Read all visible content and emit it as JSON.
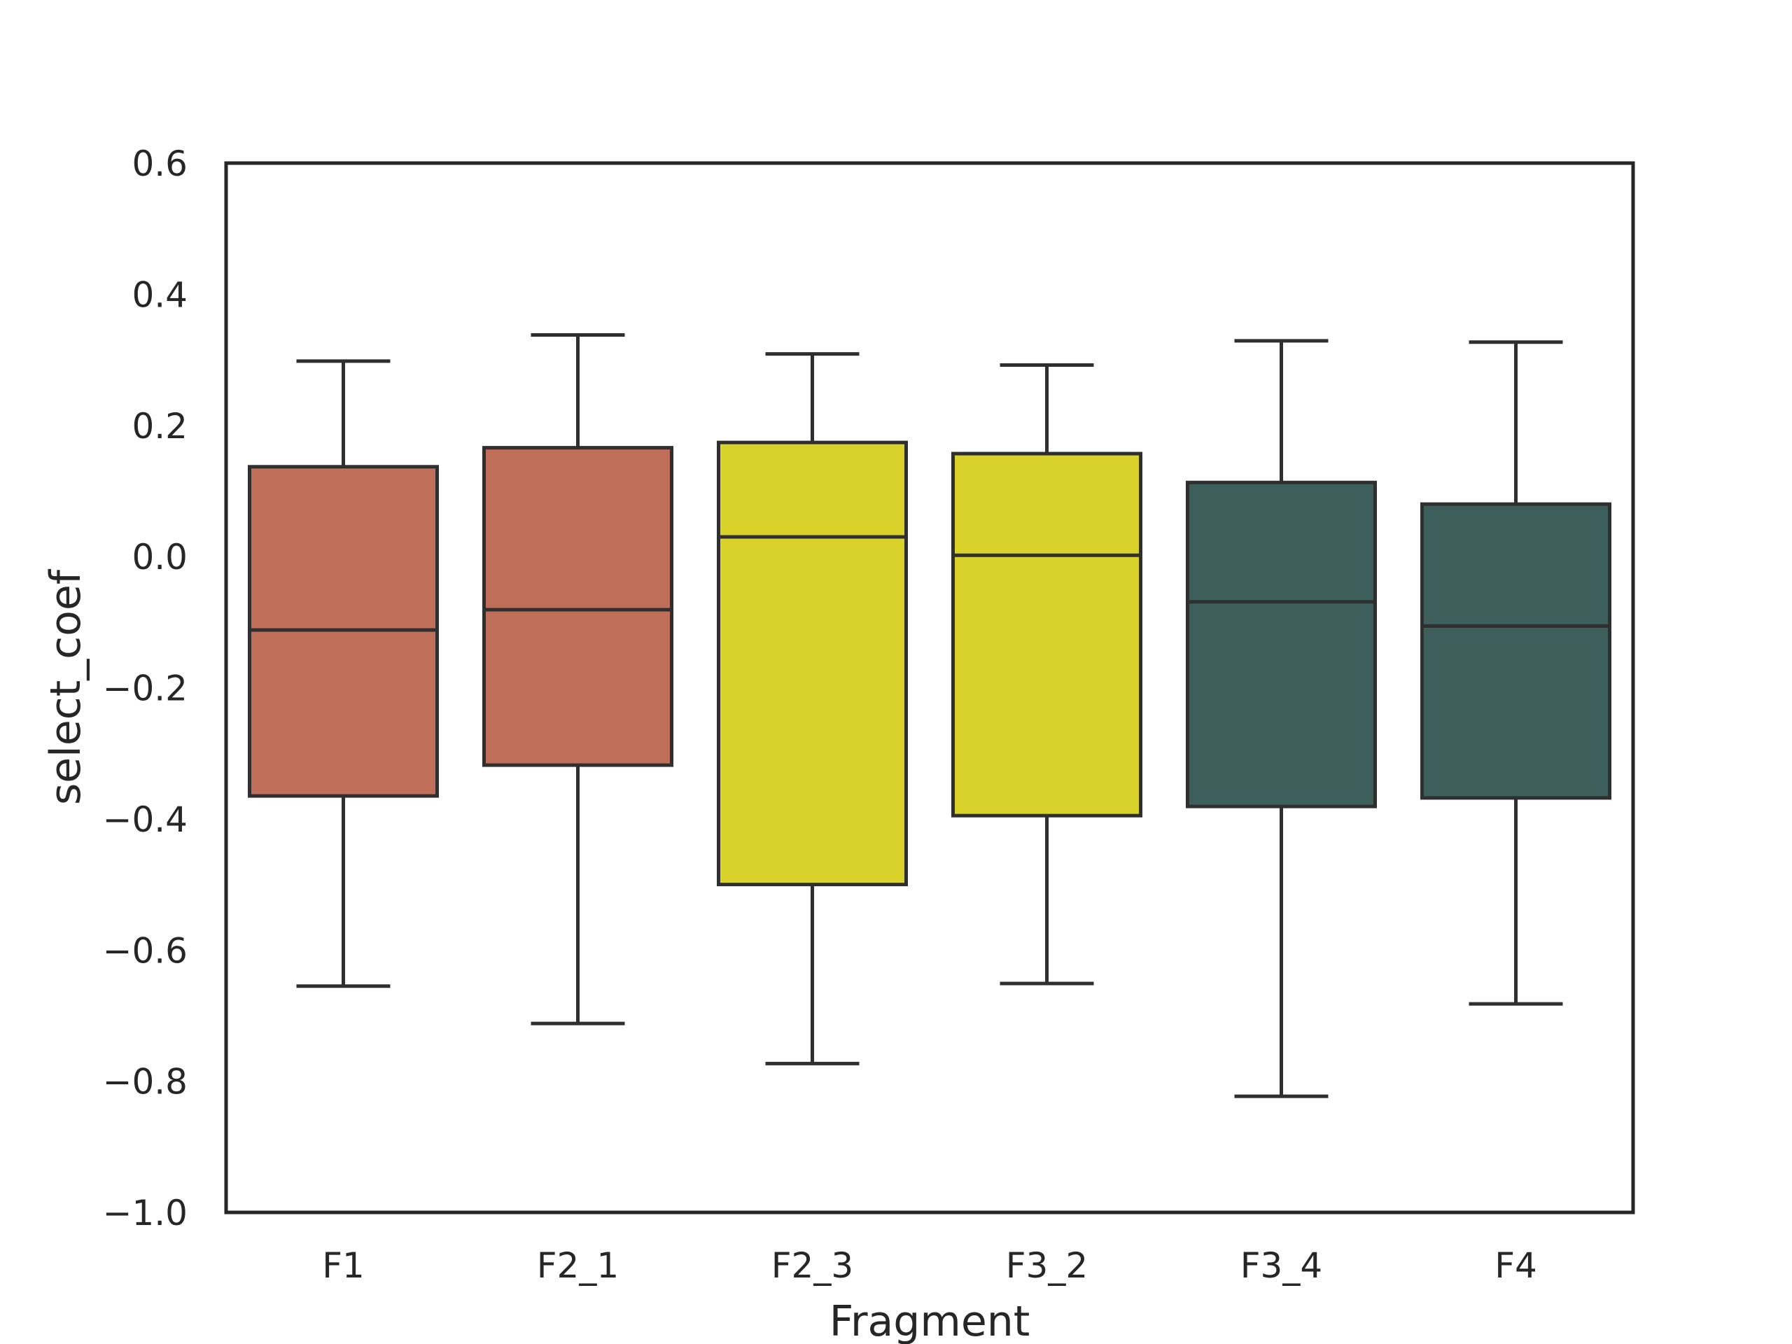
{
  "chart_data": {
    "type": "box",
    "xlabel": "Fragment",
    "ylabel": "select_coef",
    "ylim": [
      -1.0,
      0.6
    ],
    "yticks": [
      0.6,
      0.4,
      0.2,
      0.0,
      -0.2,
      -0.4,
      -0.6,
      -0.8,
      -1.0
    ],
    "ytick_labels": [
      "0.6",
      "0.4",
      "0.2",
      "0.0",
      "−0.2",
      "−0.4",
      "−0.6",
      "−0.8",
      "−1.0"
    ],
    "grid": false,
    "categories": [
      "F1",
      "F2_1",
      "F2_3",
      "F3_2",
      "F3_4",
      "F4"
    ],
    "boxes": [
      {
        "category": "F1",
        "whisker_low": -0.655,
        "q1": -0.365,
        "median": -0.112,
        "q3": 0.137,
        "whisker_high": 0.298,
        "color": "#bf6e5a"
      },
      {
        "category": "F2_1",
        "whisker_low": -0.712,
        "q1": -0.318,
        "median": -0.081,
        "q3": 0.166,
        "whisker_high": 0.338,
        "color": "#bf6e5a"
      },
      {
        "category": "F2_3",
        "whisker_low": -0.773,
        "q1": -0.5,
        "median": 0.03,
        "q3": 0.174,
        "whisker_high": 0.309,
        "color": "#d9d22b"
      },
      {
        "category": "F3_2",
        "whisker_low": -0.651,
        "q1": -0.395,
        "median": 0.002,
        "q3": 0.157,
        "whisker_high": 0.292,
        "color": "#d9d22b"
      },
      {
        "category": "F3_4",
        "whisker_low": -0.823,
        "q1": -0.381,
        "median": -0.069,
        "q3": 0.113,
        "whisker_high": 0.329,
        "color": "#3d5f5c"
      },
      {
        "category": "F4",
        "whisker_low": -0.682,
        "q1": -0.368,
        "median": -0.106,
        "q3": 0.08,
        "whisker_high": 0.327,
        "color": "#3d5f5c"
      }
    ],
    "line_color": "#2f2f2f"
  }
}
